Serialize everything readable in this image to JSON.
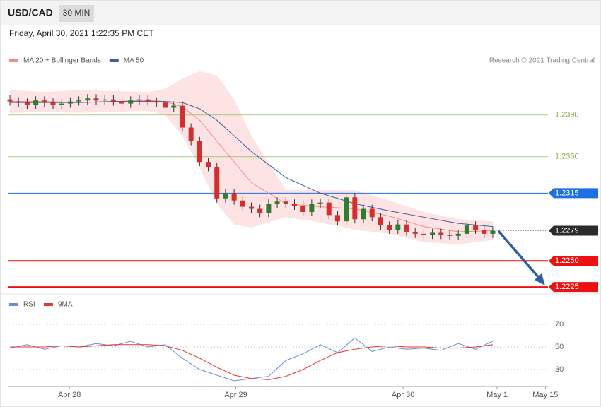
{
  "header": {
    "symbol": "USD/CAD",
    "interval": "30 MIN",
    "timestamp": "Friday, April 30, 2021 1:22:35 PM CET"
  },
  "chart_data": [
    {
      "type": "candlestick",
      "credit": "Research © 2021 Trading Central",
      "xlim": [
        -0.25,
        62.4
      ],
      "ylim": [
        1.2221,
        1.2436
      ],
      "up_color": "#2e7d32",
      "down_color": "#d32f2f",
      "band_color": "#fde3e3",
      "open": [
        1.2405,
        1.2403,
        1.2402,
        1.24,
        1.2404,
        1.2402,
        1.24,
        1.2401,
        1.2403,
        1.2404,
        1.2406,
        1.2404,
        1.2405,
        1.2403,
        1.2401,
        1.2404,
        1.2405,
        1.2403,
        1.2402,
        1.2397,
        1.2399,
        1.2378,
        1.2365,
        1.2345,
        1.234,
        1.231,
        1.2315,
        1.2308,
        1.2302,
        1.23,
        1.2296,
        1.2305,
        1.2307,
        1.2305,
        1.2303,
        1.2297,
        1.2305,
        1.2306,
        1.2294,
        1.2288,
        1.2311,
        1.229,
        1.23,
        1.2292,
        1.2284,
        1.228,
        1.2285,
        1.2278,
        1.2276,
        1.2275,
        1.2277,
        1.2275,
        1.2274,
        1.2276,
        1.2284,
        1.228,
        1.2276
      ],
      "high": [
        1.2409,
        1.2407,
        1.2406,
        1.2408,
        1.2408,
        1.2406,
        1.2405,
        1.2407,
        1.2408,
        1.241,
        1.241,
        1.2409,
        1.2409,
        1.2407,
        1.2408,
        1.2409,
        1.2409,
        1.2407,
        1.2406,
        1.2403,
        1.2403,
        1.2382,
        1.2369,
        1.2349,
        1.2344,
        1.2319,
        1.2319,
        1.2312,
        1.2306,
        1.2304,
        1.2309,
        1.2311,
        1.2311,
        1.2309,
        1.2307,
        1.2309,
        1.231,
        1.231,
        1.2298,
        1.2315,
        1.2315,
        1.2304,
        1.2304,
        1.2296,
        1.2288,
        1.2289,
        1.2289,
        1.2282,
        1.228,
        1.2281,
        1.2281,
        1.2279,
        1.228,
        1.2288,
        1.2288,
        1.2284,
        1.2283
      ],
      "low": [
        1.2399,
        1.2398,
        1.2396,
        1.2396,
        1.2398,
        1.2396,
        1.2396,
        1.2397,
        1.2399,
        1.24,
        1.24,
        1.24,
        1.2399,
        1.2397,
        1.2397,
        1.24,
        1.2399,
        1.2398,
        1.2393,
        1.2393,
        1.2374,
        1.2361,
        1.2341,
        1.2336,
        1.2306,
        1.2306,
        1.2304,
        1.2298,
        1.2296,
        1.2292,
        1.2292,
        1.2301,
        1.2301,
        1.2299,
        1.2293,
        1.2293,
        1.2301,
        1.229,
        1.2284,
        1.2284,
        1.2286,
        1.2286,
        1.2288,
        1.228,
        1.2276,
        1.2276,
        1.2274,
        1.2272,
        1.2271,
        1.2271,
        1.2271,
        1.227,
        1.227,
        1.2272,
        1.2276,
        1.2272,
        1.2272
      ],
      "close": [
        1.2403,
        1.2402,
        1.24,
        1.2404,
        1.2402,
        1.24,
        1.2401,
        1.2403,
        1.2404,
        1.2406,
        1.2404,
        1.2405,
        1.2403,
        1.2401,
        1.2404,
        1.2405,
        1.2403,
        1.2402,
        1.2397,
        1.2399,
        1.2378,
        1.2365,
        1.2345,
        1.234,
        1.231,
        1.2315,
        1.2308,
        1.2302,
        1.23,
        1.2296,
        1.2305,
        1.2307,
        1.2305,
        1.2303,
        1.2297,
        1.2305,
        1.2306,
        1.2294,
        1.2288,
        1.2311,
        1.229,
        1.23,
        1.2292,
        1.2284,
        1.228,
        1.2285,
        1.2278,
        1.2276,
        1.2275,
        1.2277,
        1.2275,
        1.2274,
        1.2276,
        1.2284,
        1.228,
        1.2276,
        1.2279
      ],
      "overlays": [
        {
          "name": "MA 20 + Bollinger Bands",
          "color": "#f28b82",
          "x": [
            0,
            4,
            8,
            12,
            16,
            18,
            20,
            22,
            24,
            26,
            28,
            32,
            36,
            40,
            44,
            48,
            52,
            56
          ],
          "values": [
            1.2403,
            1.2403,
            1.2402,
            1.2403,
            1.2404,
            1.2403,
            1.2398,
            1.2385,
            1.2365,
            1.2345,
            1.2325,
            1.2305,
            1.2302,
            1.23,
            1.2293,
            1.2283,
            1.2278,
            1.2279
          ],
          "upper": [
            1.2414,
            1.2412,
            1.2414,
            1.2413,
            1.2412,
            1.2415,
            1.2425,
            1.2432,
            1.2428,
            1.2405,
            1.237,
            1.2318,
            1.2318,
            1.2318,
            1.2308,
            1.2297,
            1.229,
            1.2288
          ],
          "lower": [
            1.2392,
            1.2393,
            1.2392,
            1.2393,
            1.2394,
            1.239,
            1.237,
            1.234,
            1.2305,
            1.2285,
            1.2282,
            1.2292,
            1.2287,
            1.228,
            1.2276,
            1.2268,
            1.2266,
            1.227
          ]
        },
        {
          "name": "MA 50",
          "color": "#3d5f9f",
          "x": [
            0,
            4,
            8,
            12,
            16,
            18,
            20,
            22,
            24,
            26,
            28,
            32,
            36,
            40,
            44,
            48,
            52,
            56
          ],
          "values": [
            1.2402,
            1.2402,
            1.2402,
            1.2403,
            1.2403,
            1.2403,
            1.2402,
            1.2396,
            1.2385,
            1.237,
            1.2355,
            1.233,
            1.2315,
            1.2305,
            1.2298,
            1.2292,
            1.2286,
            1.2283
          ]
        }
      ],
      "levels": [
        {
          "value": 1.239,
          "label": "1.2390",
          "color": "#7cb342",
          "style": "thin"
        },
        {
          "value": 1.235,
          "label": "1.2350",
          "color": "#7cb342",
          "style": "thin"
        },
        {
          "value": 1.2315,
          "label": "1.2315",
          "color": "#1e6fe0",
          "style": "tag"
        },
        {
          "value": 1.2279,
          "label": "1.2279",
          "color": "#2b2b2b",
          "style": "current"
        },
        {
          "value": 1.225,
          "label": "1.2250",
          "color": "#ee1111",
          "style": "thick"
        },
        {
          "value": 1.2225,
          "label": "1.2225",
          "color": "#ee1111",
          "style": "thick"
        }
      ]
    },
    {
      "type": "line",
      "xlim": [
        -0.25,
        62.4
      ],
      "ylim": [
        16,
        82
      ],
      "yticks": [
        30,
        50,
        70
      ],
      "xticks": [
        {
          "value": 6.9,
          "label": "Apr 28"
        },
        {
          "value": 26.2,
          "label": "Apr 29"
        },
        {
          "value": 45.6,
          "label": "Apr 30"
        },
        {
          "value": 56.5,
          "label": "May 1"
        },
        {
          "value": 62.1,
          "label": "May 15"
        }
      ],
      "series": [
        {
          "name": "RSI",
          "color": "#6a8fd8",
          "x": [
            0,
            2,
            4,
            6,
            8,
            10,
            12,
            14,
            16,
            18,
            20,
            22,
            24,
            26,
            28,
            30,
            32,
            34,
            36,
            38,
            40,
            42,
            44,
            46,
            48,
            50,
            52,
            54,
            56
          ],
          "values": [
            49,
            52,
            48,
            51,
            50,
            53,
            51,
            55,
            50,
            52,
            40,
            30,
            25,
            20,
            22,
            24,
            38,
            44,
            52,
            45,
            58,
            46,
            50,
            48,
            49,
            47,
            53,
            48,
            55
          ]
        },
        {
          "name": "9MA",
          "color": "#e53935",
          "x": [
            0,
            2,
            4,
            6,
            8,
            10,
            12,
            14,
            16,
            18,
            20,
            22,
            24,
            26,
            28,
            30,
            32,
            34,
            36,
            38,
            40,
            42,
            44,
            46,
            48,
            50,
            52,
            54,
            56
          ],
          "values": [
            50,
            50,
            50,
            51,
            50,
            51,
            52,
            52,
            52,
            51,
            47,
            40,
            32,
            25,
            22,
            21,
            24,
            30,
            38,
            45,
            48,
            50,
            51,
            50,
            50,
            49,
            49,
            50,
            52
          ]
        }
      ]
    }
  ]
}
